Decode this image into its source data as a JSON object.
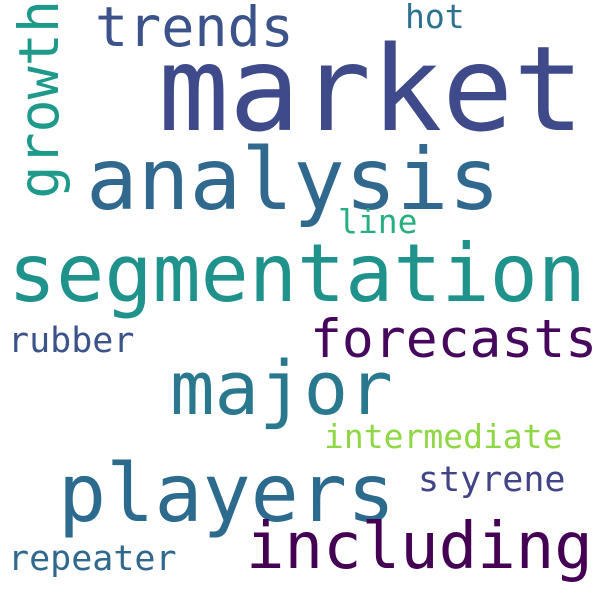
{
  "words": {
    "market": {
      "text": "market",
      "color": "#3e4a89"
    },
    "analysis": {
      "text": "analysis",
      "color": "#31688e"
    },
    "segmentation": {
      "text": "segmentation",
      "color": "#20928c"
    },
    "major": {
      "text": "major",
      "color": "#2a788e"
    },
    "players": {
      "text": "players",
      "color": "#2c6a8e"
    },
    "including": {
      "text": "including",
      "color": "#440154"
    },
    "forecasts": {
      "text": "forecasts",
      "color": "#46085c"
    },
    "trends": {
      "text": "trends",
      "color": "#3b528b"
    },
    "growth": {
      "text": "growth",
      "color": "#1f9a8a"
    },
    "hot": {
      "text": "hot",
      "color": "#2c728e"
    },
    "line": {
      "text": "line",
      "color": "#29af7f"
    },
    "rubber": {
      "text": "rubber",
      "color": "#3b528b"
    },
    "intermediate": {
      "text": "intermediate",
      "color": "#8fd744"
    },
    "styrene": {
      "text": "styrene",
      "color": "#414487"
    },
    "repeater": {
      "text": "repeater",
      "color": "#31688e"
    }
  }
}
